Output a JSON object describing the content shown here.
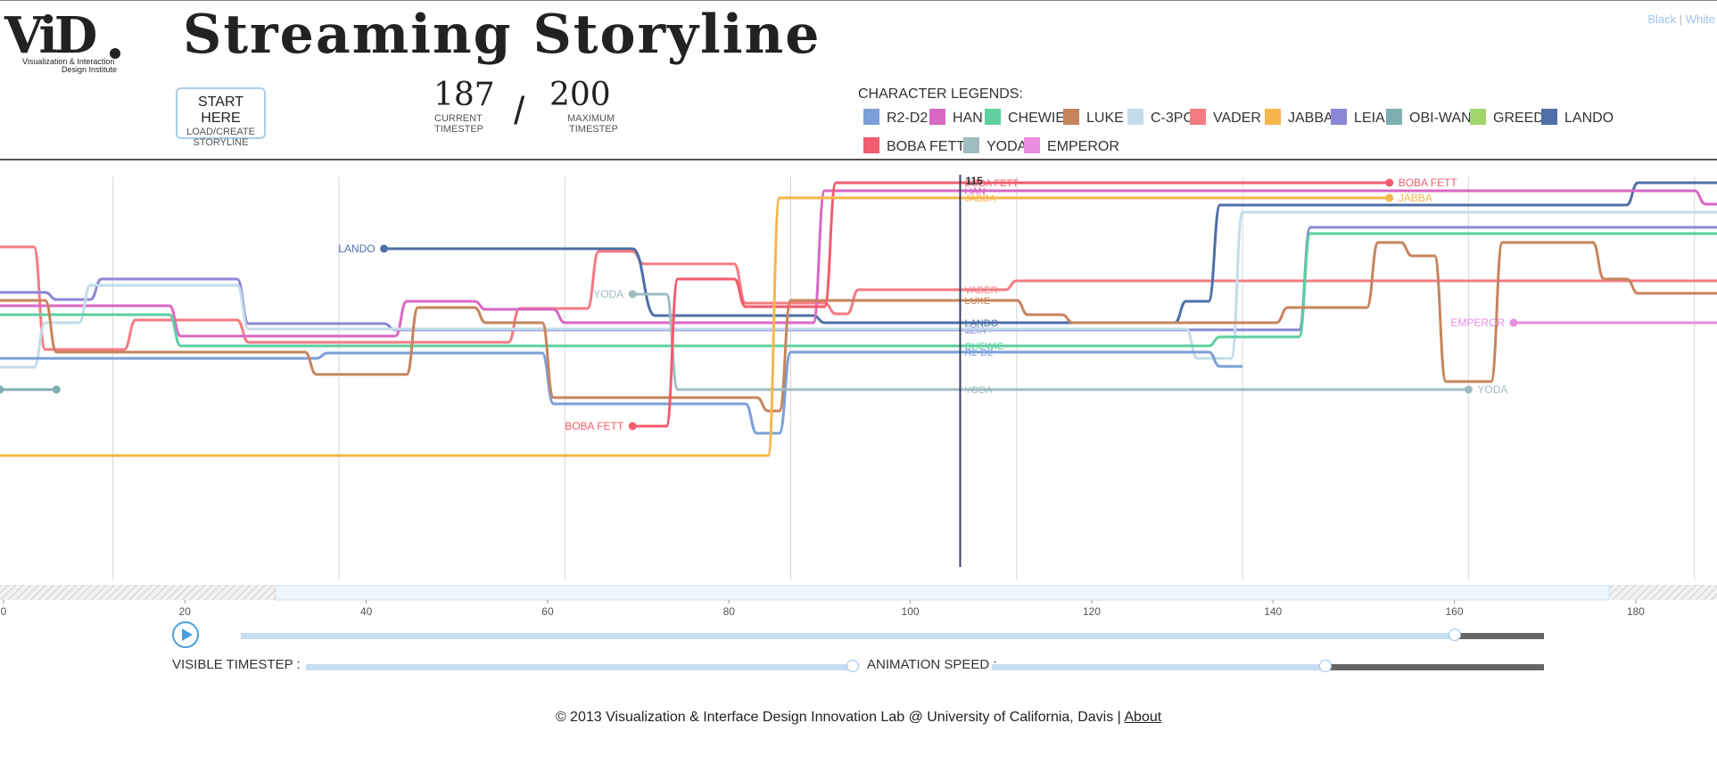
{
  "app": {
    "title": "Streaming Storyline",
    "logo_text": "ViD",
    "logo_subtitle_1": "Visualization & Interaction",
    "logo_subtitle_2": "Design Institute",
    "theme_black": "Black",
    "theme_separator": "|",
    "theme_white": "White"
  },
  "controls": {
    "start_label": "START HERE",
    "start_sub_1": "LOAD/CREATE",
    "start_sub_2": "STORYLINE",
    "current_timestep": "187",
    "current_caption_1": "CURRENT",
    "current_caption_2": "TIMESTEP",
    "slash": "/",
    "max_timestep": "200",
    "max_caption_1": "MAXIMUM",
    "max_caption_2": "TIMESTEP",
    "visible_timestep_label": "VISIBLE TIMESTEP :",
    "animation_speed_label": "ANIMATION SPEED :",
    "playback_progress": 0.84,
    "visible_timestep_level": 0.58,
    "animation_speed_level": 0.6
  },
  "legend": {
    "title": "CHARACTER LEGENDS:",
    "items": [
      {
        "name": "R2-D2",
        "color": "#7b9fd9"
      },
      {
        "name": "HAN",
        "color": "#d967c4"
      },
      {
        "name": "CHEWIE",
        "color": "#5dcfa0"
      },
      {
        "name": "LUKE",
        "color": "#c6845d"
      },
      {
        "name": "C-3PO",
        "color": "#c4dcea"
      },
      {
        "name": "VADER",
        "color": "#f57b82"
      },
      {
        "name": "JABBA",
        "color": "#f6b64c"
      },
      {
        "name": "LEIA",
        "color": "#8b87d6"
      },
      {
        "name": "OBI-WAN",
        "color": "#7eaeb0"
      },
      {
        "name": "GREEDO",
        "color": "#9fd76a"
      },
      {
        "name": "LANDO",
        "color": "#4e6fa8"
      },
      {
        "name": "BOBA FETT",
        "color": "#f25c6e"
      },
      {
        "name": "YODA",
        "color": "#9fbcc0"
      },
      {
        "name": "EMPEROR",
        "color": "#e88de0"
      }
    ]
  },
  "chart_data": {
    "type": "line",
    "title": "",
    "xlabel": "",
    "ylabel": "",
    "main_ticks": [
      "40",
      "60",
      "80",
      "100",
      "120",
      "140",
      "160",
      "180"
    ],
    "timeline_ticks": [
      "0",
      "20",
      "40",
      "60",
      "80",
      "100",
      "120",
      "140",
      "160",
      "180"
    ],
    "x_range": [
      30,
      182
    ],
    "timeline_range": [
      0,
      187
    ],
    "cursor_time": 115,
    "cursor_label": "115",
    "y_note": "y values are storyline lane positions (0 = top)",
    "series": [
      {
        "name": "VADER",
        "color": "#f57b82",
        "points": [
          [
            30,
            97
          ],
          [
            33,
            97
          ],
          [
            34,
            212
          ],
          [
            41,
            212
          ],
          [
            42,
            179
          ],
          [
            51,
            179
          ],
          [
            52,
            204
          ],
          [
            75,
            204
          ],
          [
            76,
            166
          ],
          [
            82,
            166
          ],
          [
            83,
            102
          ],
          [
            86,
            102
          ],
          [
            87,
            116
          ],
          [
            95,
            116
          ],
          [
            96,
            160
          ],
          [
            103,
            160
          ],
          [
            104,
            172
          ],
          [
            105,
            172
          ],
          [
            106,
            145
          ],
          [
            119,
            145
          ],
          [
            120,
            135
          ],
          [
            181,
            135
          ],
          [
            182,
            135
          ]
        ],
        "labels": [
          {
            "text": "VADER",
            "t": 115
          }
        ]
      },
      {
        "name": "LANDO",
        "color": "#4e6fa8",
        "points": [
          [
            64,
            99
          ],
          [
            86,
            99
          ],
          [
            88,
            174
          ],
          [
            102,
            174
          ],
          [
            103,
            182
          ],
          [
            134,
            182
          ],
          [
            135,
            158
          ],
          [
            137,
            158
          ],
          [
            138,
            50
          ],
          [
            174,
            50
          ],
          [
            175,
            25
          ],
          [
            182,
            25
          ]
        ],
        "start_label": "LANDO",
        "labels": [
          {
            "text": "LANDO",
            "t": 115
          }
        ]
      },
      {
        "name": "LEIA",
        "color": "#8b87d6",
        "points": [
          [
            30,
            148
          ],
          [
            34,
            148
          ],
          [
            35,
            156
          ],
          [
            38,
            156
          ],
          [
            39,
            133
          ],
          [
            51,
            133
          ],
          [
            52,
            183
          ],
          [
            64,
            183
          ],
          [
            65,
            190
          ],
          [
            145,
            190
          ],
          [
            146,
            75
          ],
          [
            182,
            75
          ]
        ],
        "labels": [
          {
            "text": "LEIA",
            "t": 115
          }
        ]
      },
      {
        "name": "HAN",
        "color": "#d967c4",
        "points": [
          [
            30,
            163
          ],
          [
            45,
            163
          ],
          [
            46,
            197
          ],
          [
            65,
            197
          ],
          [
            66,
            158
          ],
          [
            72,
            158
          ],
          [
            73,
            167
          ],
          [
            79,
            167
          ],
          [
            80,
            182
          ],
          [
            102,
            182
          ],
          [
            103,
            34
          ],
          [
            180,
            34
          ],
          [
            181,
            49
          ],
          [
            182,
            49
          ]
        ],
        "labels": [
          {
            "text": "HAN",
            "t": 115
          }
        ]
      },
      {
        "name": "C-3PO",
        "color": "#c4dcea",
        "points": [
          [
            30,
            232
          ],
          [
            33,
            232
          ],
          [
            34,
            182
          ],
          [
            37,
            182
          ],
          [
            38,
            140
          ],
          [
            51,
            140
          ],
          [
            52,
            189
          ],
          [
            135,
            189
          ],
          [
            136,
            222
          ],
          [
            139,
            222
          ],
          [
            140,
            58
          ],
          [
            182,
            58
          ]
        ],
        "labels": [
          {
            "text": "C-3PO",
            "t": 115
          }
        ]
      },
      {
        "name": "CHEWIE",
        "color": "#5dcfa0",
        "points": [
          [
            30,
            173
          ],
          [
            45,
            173
          ],
          [
            46,
            208
          ],
          [
            137,
            208
          ],
          [
            138,
            198
          ],
          [
            145,
            198
          ],
          [
            146,
            82
          ],
          [
            182,
            82
          ]
        ],
        "labels": [
          {
            "text": "CHEWIE",
            "t": 115
          }
        ]
      },
      {
        "name": "R2-D2",
        "color": "#7b9fd9",
        "points": [
          [
            30,
            222
          ],
          [
            58,
            222
          ],
          [
            59,
            216
          ],
          [
            78,
            216
          ],
          [
            79,
            273
          ],
          [
            96,
            273
          ],
          [
            97,
            306
          ],
          [
            99,
            306
          ],
          [
            100,
            215
          ],
          [
            137,
            215
          ],
          [
            138,
            231
          ],
          [
            140,
            231
          ]
        ],
        "labels": [
          {
            "text": "R2-D2",
            "t": 115
          }
        ]
      },
      {
        "name": "LUKE",
        "color": "#c6845d",
        "points": [
          [
            30,
            157
          ],
          [
            34,
            157
          ],
          [
            35,
            215
          ],
          [
            57,
            215
          ],
          [
            58,
            240
          ],
          [
            66,
            240
          ],
          [
            67,
            165
          ],
          [
            72,
            165
          ],
          [
            73,
            182
          ],
          [
            78,
            182
          ],
          [
            79,
            266
          ],
          [
            97,
            266
          ],
          [
            98,
            281
          ],
          [
            99,
            281
          ],
          [
            100,
            157
          ],
          [
            120,
            157
          ],
          [
            121,
            173
          ],
          [
            124,
            173
          ],
          [
            125,
            182
          ],
          [
            143,
            182
          ],
          [
            144,
            165
          ],
          [
            151,
            165
          ],
          [
            152,
            92
          ],
          [
            154,
            92
          ],
          [
            155,
            107
          ],
          [
            157,
            107
          ],
          [
            158,
            248
          ],
          [
            162,
            248
          ],
          [
            163,
            92
          ],
          [
            171,
            92
          ],
          [
            172,
            133
          ],
          [
            174,
            133
          ],
          [
            175,
            149
          ],
          [
            182,
            149
          ]
        ],
        "labels": [
          {
            "text": "LUKE",
            "t": 115
          }
        ]
      },
      {
        "name": "OBI-WAN",
        "color": "#7eaeb0",
        "points": [
          [
            30,
            257
          ],
          [
            35,
            257
          ]
        ],
        "start_label": "OBI-WAN",
        "end_point": true
      },
      {
        "name": "YODA",
        "color": "#9fbcc0",
        "points": [
          [
            86,
            150
          ],
          [
            89,
            150
          ],
          [
            90,
            257
          ],
          [
            160,
            257
          ]
        ],
        "start_label": "YODA",
        "end_label": "YODA",
        "labels": [
          {
            "text": "YODA",
            "t": 115
          }
        ]
      },
      {
        "name": "BOBA FETT",
        "color": "#f25c6e",
        "points": [
          [
            86,
            298
          ],
          [
            89,
            298
          ],
          [
            90,
            133
          ],
          [
            95,
            133
          ],
          [
            96,
            164
          ],
          [
            103,
            164
          ],
          [
            104,
            25
          ],
          [
            153,
            25
          ]
        ],
        "start_label": "BOBA FETT",
        "end_label": "BOBA FETT",
        "labels": [
          {
            "text": "BOBA FETT",
            "t": 115
          }
        ]
      },
      {
        "name": "JABBA",
        "color": "#f6b64c",
        "points": [
          [
            30,
            331
          ],
          [
            98,
            331
          ],
          [
            99,
            42
          ],
          [
            153,
            42
          ]
        ],
        "end_label": "JABBA",
        "labels": [
          {
            "text": "JABBA",
            "t": 115
          }
        ]
      },
      {
        "name": "EMPEROR",
        "color": "#e88de0",
        "points": [
          [
            164,
            182
          ],
          [
            182,
            182
          ]
        ],
        "start_label": "EMPEROR"
      }
    ]
  },
  "footer": {
    "text": "© 2013 Visualization & Interface Design Innovation Lab @ University of California, Davis |",
    "about": "About"
  }
}
